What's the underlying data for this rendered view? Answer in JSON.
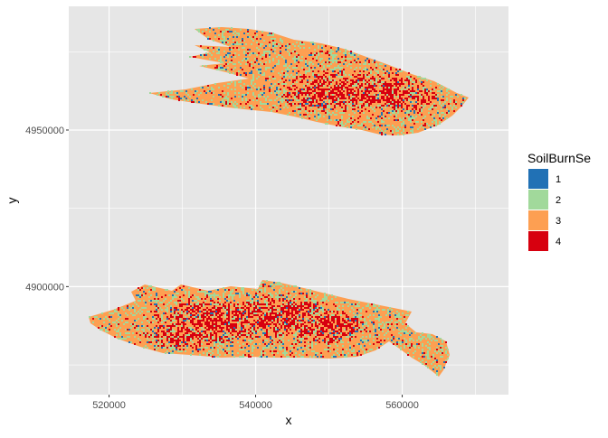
{
  "chart_data": {
    "type": "heatmap",
    "title": "",
    "xlabel": "x",
    "ylabel": "y",
    "xlim": [
      514500,
      574500
    ],
    "ylim": [
      4865500,
      4989500
    ],
    "x_ticks": [
      520000,
      540000,
      560000
    ],
    "y_ticks": [
      4900000,
      4950000
    ],
    "x_tick_labels": [
      "520000",
      "540000",
      "560000"
    ],
    "y_tick_labels": [
      "4900000",
      "4950000"
    ],
    "grid": true,
    "legend": {
      "title": "SoilBurnSe",
      "position": "right",
      "entries": [
        {
          "label": "1",
          "color": "#2171b5"
        },
        {
          "label": "2",
          "color": "#a1d99b"
        },
        {
          "label": "3",
          "color": "#fd9f52"
        },
        {
          "label": "4",
          "color": "#d7000f"
        }
      ]
    },
    "regions": [
      {
        "name": "northern-burn-area",
        "x_range": [
          525500,
          569000
        ],
        "y_range": [
          4950000,
          4985500
        ],
        "dominant_class": "3",
        "core_class": "4"
      },
      {
        "name": "southern-burn-area",
        "x_range": [
          517000,
          567500
        ],
        "y_range": [
          4870000,
          4903000
        ],
        "dominant_class": "3",
        "core_class": "4"
      }
    ],
    "background_color": "#e6e6e6",
    "grid_color": "#ffffff"
  }
}
